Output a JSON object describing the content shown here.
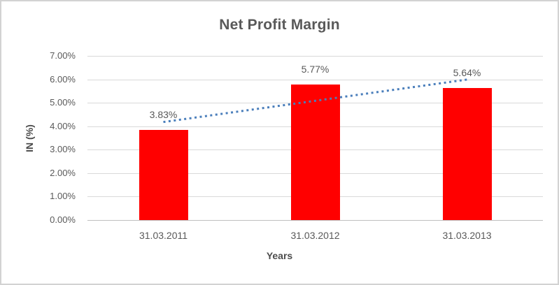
{
  "chart_data": {
    "type": "bar",
    "title": "Net Profit Margin",
    "xlabel": "Years",
    "ylabel": "IN (%)",
    "categories": [
      "31.03.2011",
      "31.03.2012",
      "31.03.2013"
    ],
    "values": [
      3.83,
      5.77,
      5.64
    ],
    "data_labels": [
      "3.83%",
      "5.77%",
      "5.64%"
    ],
    "ylim": [
      0,
      7
    ],
    "ytick_step": 1,
    "ytick_labels": [
      "0.00%",
      "1.00%",
      "2.00%",
      "3.00%",
      "4.00%",
      "5.00%",
      "6.00%",
      "7.00%"
    ],
    "grid": true,
    "legend": "none",
    "trendline": {
      "style": "dotted",
      "y_start": 4.18,
      "y_end": 5.99
    }
  },
  "colors": {
    "bar": "#ff0000",
    "trendline": "#4a7ebb",
    "gridline": "#d9d9d9",
    "axis_line": "#bfbfbf",
    "text": "#595959",
    "frame_border": "#d2d2d2"
  }
}
